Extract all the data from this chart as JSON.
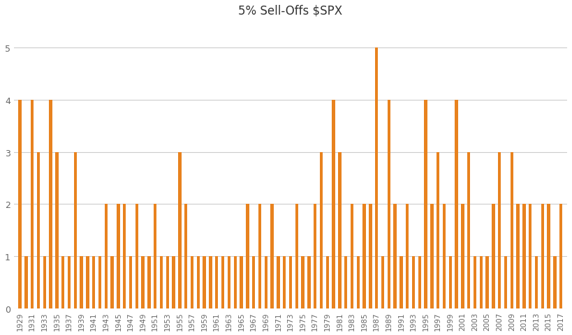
{
  "title": "5% Sell-Offs $SPX",
  "bar_color": "#E8821E",
  "background_color": "#ffffff",
  "ylim": [
    0,
    5.5
  ],
  "yticks": [
    0,
    1,
    2,
    3,
    4,
    5
  ],
  "data": {
    "1929": 4,
    "1930": 1,
    "1931": 4,
    "1932": 3,
    "1933": 1,
    "1934": 4,
    "1935": 3,
    "1936": 1,
    "1937": 1,
    "1938": 3,
    "1939": 1,
    "1940": 1,
    "1941": 1,
    "1942": 1,
    "1943": 2,
    "1944": 1,
    "1945": 2,
    "1946": 2,
    "1947": 1,
    "1948": 2,
    "1949": 1,
    "1950": 1,
    "1951": 2,
    "1952": 1,
    "1953": 1,
    "1954": 1,
    "1955": 3,
    "1956": 2,
    "1957": 1,
    "1958": 1,
    "1959": 1,
    "1960": 1,
    "1961": 1,
    "1962": 1,
    "1963": 1,
    "1964": 1,
    "1965": 1,
    "1966": 2,
    "1967": 1,
    "1968": 2,
    "1969": 1,
    "1970": 2,
    "1971": 1,
    "1972": 1,
    "1973": 1,
    "1974": 2,
    "1975": 1,
    "1976": 1,
    "1977": 2,
    "1978": 3,
    "1979": 1,
    "1980": 4,
    "1981": 3,
    "1982": 1,
    "1983": 2,
    "1984": 1,
    "1985": 2,
    "1986": 2,
    "1987": 5,
    "1988": 1,
    "1989": 4,
    "1990": 2,
    "1991": 1,
    "1992": 2,
    "1993": 1,
    "1994": 1,
    "1995": 4,
    "1996": 2,
    "1997": 3,
    "1998": 2,
    "1999": 1,
    "2000": 4,
    "2001": 2,
    "2002": 3,
    "2003": 1,
    "2004": 1,
    "2005": 1,
    "2006": 2,
    "2007": 3,
    "2008": 1,
    "2009": 3,
    "2010": 2,
    "2011": 2,
    "2012": 2,
    "2013": 1,
    "2014": 2,
    "2015": 2,
    "2016": 1,
    "2017": 2
  }
}
